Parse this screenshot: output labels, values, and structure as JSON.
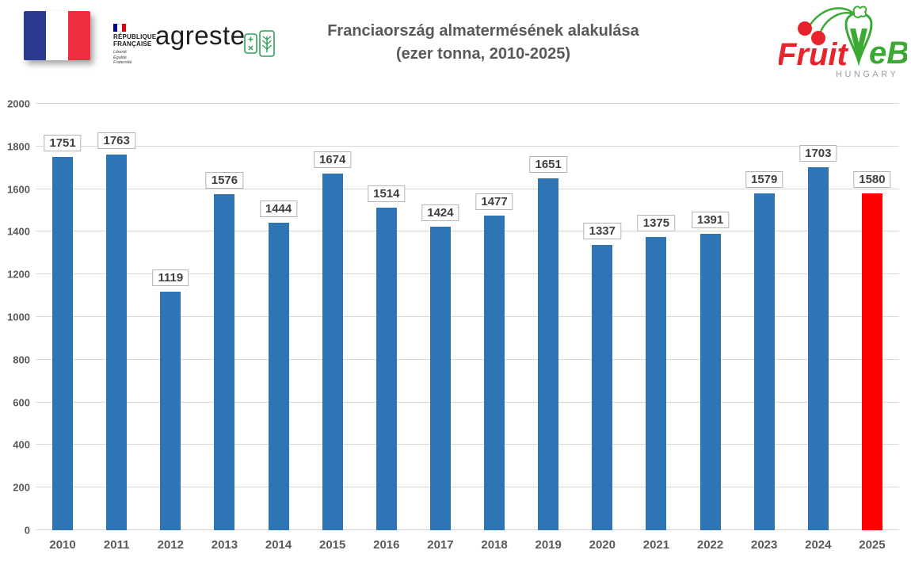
{
  "header": {
    "republique": {
      "line1": "RÉPUBLIQUE",
      "line2": "FRANÇAISE",
      "motto1": "Liberté",
      "motto2": "Égalité",
      "motto3": "Fraternité"
    },
    "agreste_label": "agreste",
    "title_line1": "Franciaország almatermésének alakulása",
    "title_line2": "(ezer tonna, 2010-2025)",
    "fruitveb": {
      "fruit": "Fruit",
      "v": "V",
      "eb": "eB",
      "hungary": "HUNGARY"
    }
  },
  "chart_data": {
    "type": "bar",
    "title": "Franciaország almatermésének alakulása (ezer tonna, 2010-2025)",
    "xlabel": "",
    "ylabel": "",
    "categories": [
      "2010",
      "2011",
      "2012",
      "2013",
      "2014",
      "2015",
      "2016",
      "2017",
      "2018",
      "2019",
      "2020",
      "2021",
      "2022",
      "2023",
      "2024",
      "2025"
    ],
    "values": [
      1751,
      1763,
      1119,
      1576,
      1444,
      1674,
      1514,
      1424,
      1477,
      1651,
      1337,
      1375,
      1391,
      1579,
      1703,
      1580
    ],
    "ylim": [
      0,
      2000
    ],
    "yticks": [
      0,
      200,
      400,
      600,
      800,
      1000,
      1200,
      1400,
      1600,
      1800,
      2000
    ],
    "grid": true,
    "legend": false,
    "data_labels": true,
    "bar_color": "#2e75b6",
    "highlight_index": 15,
    "highlight_color": "#fe0000"
  },
  "colors": {
    "title_text": "#595959",
    "axis_text": "#595959",
    "data_label_text": "#3f3f3f",
    "data_label_border": "#b3b3b3",
    "gridline": "#d9d9d9",
    "flag_blue": "#2b3990",
    "flag_red": "#ee2d3e",
    "agreste_green": "#2fa05a",
    "fruitveb_red": "#e8232b",
    "fruitveb_green": "#3aaa35",
    "fruitveb_gray": "#9a9a9a"
  }
}
